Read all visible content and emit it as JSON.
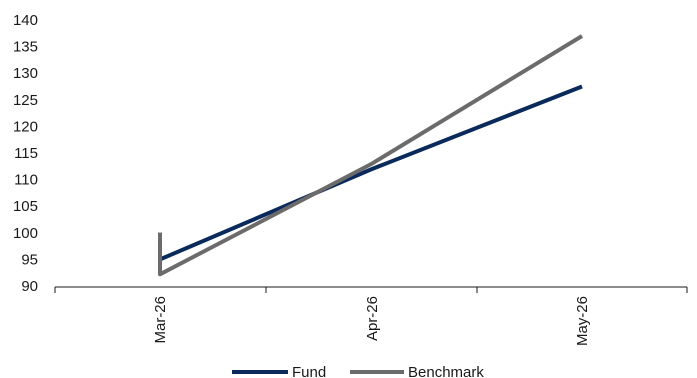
{
  "chart_data": {
    "type": "line",
    "title": "",
    "xlabel": "",
    "ylabel": "",
    "ylim": [
      90,
      140
    ],
    "y_ticks": [
      90,
      95,
      100,
      105,
      110,
      115,
      120,
      125,
      130,
      135,
      140
    ],
    "x_tick_labels": [
      "Mar-26",
      "Apr-26",
      "May-26"
    ],
    "grid": false,
    "legend_position": "bottom-center",
    "series": [
      {
        "name": "Fund",
        "color": "#0b2a5c",
        "points": [
          {
            "x": "Mar-26",
            "y": 100
          },
          {
            "x": "Mar-26",
            "y": 95
          },
          {
            "x": "Apr-26",
            "y": 112
          },
          {
            "x": "May-26",
            "y": 127.5
          }
        ]
      },
      {
        "name": "Benchmark",
        "color": "#6b6b6b",
        "points": [
          {
            "x": "Mar-26",
            "y": 100
          },
          {
            "x": "Mar-26",
            "y": 92.2
          },
          {
            "x": "Apr-26",
            "y": 113
          },
          {
            "x": "May-26",
            "y": 137
          }
        ]
      }
    ]
  }
}
